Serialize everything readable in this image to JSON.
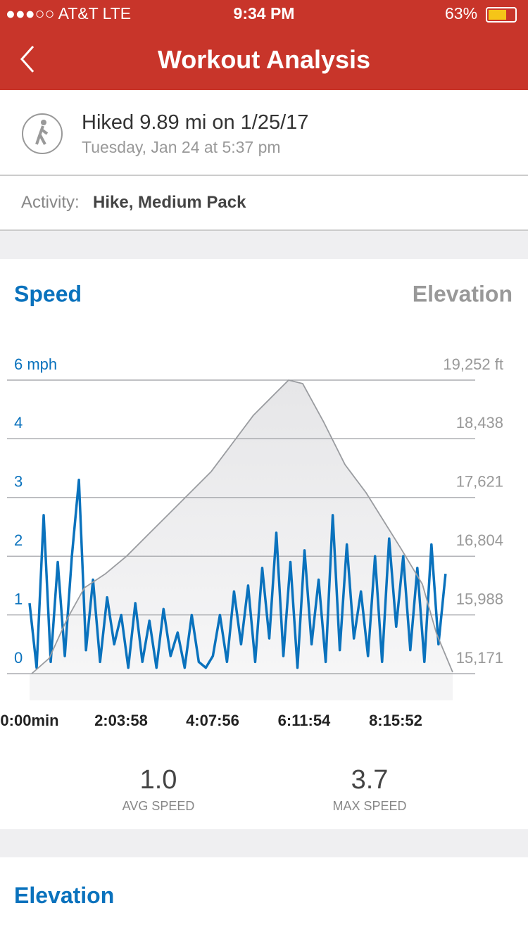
{
  "status_bar": {
    "carrier": "●●●○○ AT&T  LTE",
    "time": "9:34 PM",
    "battery": "63%"
  },
  "nav": {
    "title": "Workout Analysis"
  },
  "workout": {
    "title": "Hiked 9.89 mi on 1/25/17",
    "subtitle": "Tuesday, Jan 24 at 5:37 pm",
    "activity_label": "Activity:",
    "activity": "Hike, Medium Pack"
  },
  "chart_data": {
    "type": "line",
    "series": [
      {
        "name": "Speed",
        "color": "#0a72bd",
        "x": [
          0,
          573,
          1146,
          1719,
          2292,
          2865,
          3438,
          4011,
          4584,
          5157,
          5730,
          6303,
          6876,
          7449,
          8022,
          8595,
          9168,
          9741,
          10314,
          10887,
          11460,
          12033,
          12606,
          13179,
          13752,
          14325,
          14898,
          15471,
          16044,
          16617,
          17190,
          17763,
          18336,
          18909,
          19482,
          20055,
          20628,
          21201,
          21774,
          22347,
          22920,
          23493,
          24066,
          24639,
          25212,
          25785,
          26358,
          26931,
          27504,
          28077,
          28650,
          29223,
          29796,
          30369,
          30942,
          31515,
          32088,
          32661,
          33234,
          33807
        ],
        "values": [
          1.2,
          0.1,
          2.7,
          0.2,
          1.9,
          0.3,
          2.0,
          3.3,
          0.4,
          1.6,
          0.2,
          1.3,
          0.5,
          1.0,
          0.1,
          1.2,
          0.2,
          0.9,
          0.1,
          1.1,
          0.3,
          0.7,
          0.1,
          1.0,
          0.2,
          0.1,
          0.3,
          1.0,
          0.2,
          1.4,
          0.5,
          1.5,
          0.2,
          1.8,
          0.6,
          2.4,
          0.3,
          1.9,
          0.1,
          2.1,
          0.5,
          1.6,
          0.2,
          2.7,
          0.4,
          2.2,
          0.6,
          1.4,
          0.3,
          2.0,
          0.2,
          2.3,
          0.8,
          2.0,
          0.4,
          1.8,
          0.2,
          2.2,
          0.5,
          1.7
        ]
      },
      {
        "name": "Elevation",
        "color": "#9a9ca0",
        "axis": "y2",
        "x": [
          172,
          1602,
          3032,
          4463,
          6179,
          7896,
          9612,
          11329,
          13045,
          14761,
          16478,
          18194,
          19911,
          21055,
          22199,
          23916,
          25632,
          27349,
          28779,
          30206,
          31926,
          33070,
          34386
        ],
        "values": [
          15171,
          15386,
          15925,
          16365,
          16561,
          16806,
          17100,
          17393,
          17686,
          17980,
          18371,
          18763,
          19057,
          19252,
          19203,
          18665,
          18078,
          17686,
          17295,
          16904,
          16414,
          15729,
          15191
        ]
      }
    ],
    "xlim": [
      0,
      34387
    ],
    "xticks": [
      {
        "value": 0,
        "label": "0:00min"
      },
      {
        "value": 7438,
        "label": "2:03:58"
      },
      {
        "value": 14876,
        "label": "4:07:56"
      },
      {
        "value": 22314,
        "label": "6:11:54"
      },
      {
        "value": 29752,
        "label": "8:15:52"
      }
    ],
    "yticks": [
      0,
      1,
      2,
      3,
      4,
      {
        "value": 6,
        "label": "6 mph"
      }
    ],
    "y2lim": [
      15171,
      19252
    ],
    "y2ticks": [
      {
        "value": 15171,
        "label": "15,171"
      },
      {
        "value": 15988,
        "label": "15,988"
      },
      {
        "value": 16804,
        "label": "16,804"
      },
      {
        "value": 17621,
        "label": "17,621"
      },
      {
        "value": 18438,
        "label": "18,438"
      },
      {
        "value": 19252,
        "label": "19,252 ft"
      }
    ],
    "grid": true
  },
  "stats": [
    {
      "value": "1.0",
      "label": "AVG SPEED"
    },
    {
      "value": "3.7",
      "label": "MAX SPEED"
    }
  ],
  "section": {
    "title": "Elevation"
  }
}
